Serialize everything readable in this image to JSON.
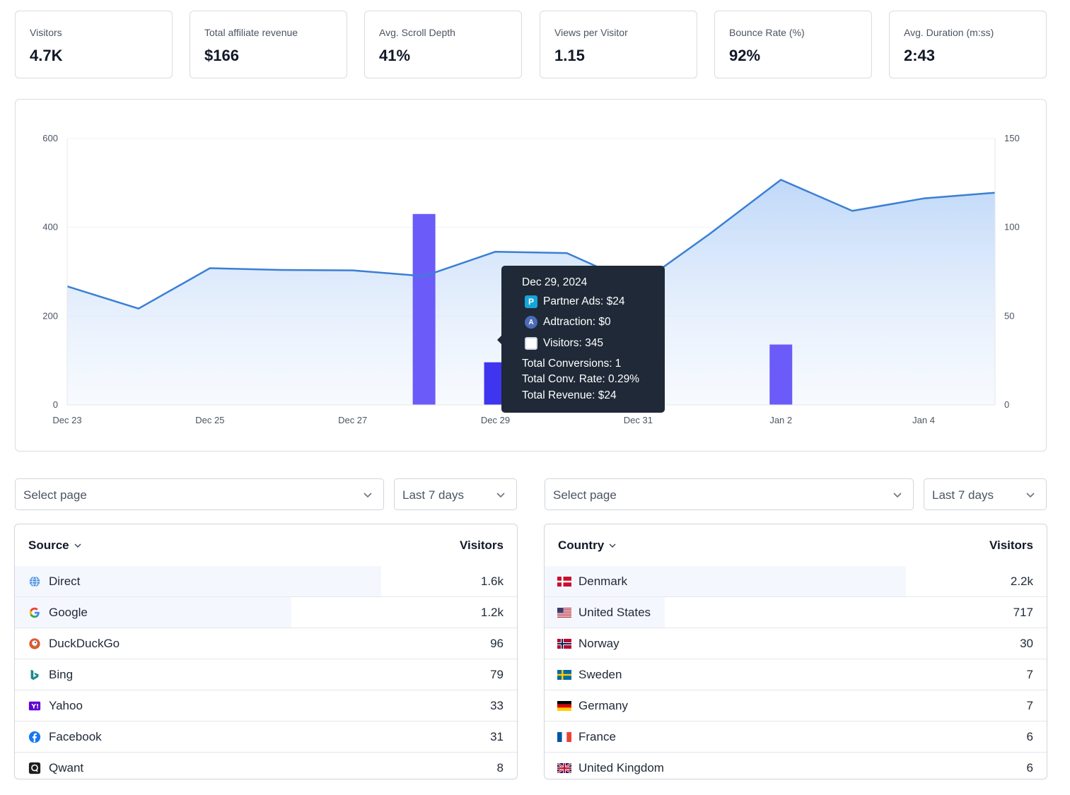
{
  "stats": [
    {
      "label": "Visitors",
      "value": "4.7K"
    },
    {
      "label": "Total affiliate revenue",
      "value": "$166"
    },
    {
      "label": "Avg. Scroll Depth",
      "value": "41%"
    },
    {
      "label": "Views per Visitor",
      "value": "1.15"
    },
    {
      "label": "Bounce Rate (%)",
      "value": "92%"
    },
    {
      "label": "Avg. Duration (m:ss)",
      "value": "2:43"
    }
  ],
  "chart_data": {
    "type": "line",
    "x": [
      "Dec 23",
      "Dec 24",
      "Dec 25",
      "Dec 26",
      "Dec 27",
      "Dec 28",
      "Dec 29",
      "Dec 30",
      "Dec 31",
      "Jan 1",
      "Jan 2",
      "Jan 3",
      "Jan 4",
      "Jan 5"
    ],
    "x_tick_labels": [
      "Dec 23",
      "Dec 25",
      "Dec 27",
      "Dec 29",
      "Dec 31",
      "Jan 2",
      "Jan 4"
    ],
    "left_axis": {
      "ylim": [
        0,
        600
      ],
      "ticks": [
        "600",
        "400",
        "200",
        "0"
      ]
    },
    "right_axis": {
      "ylim": [
        0,
        150
      ],
      "ticks": [
        "150",
        "100",
        "50",
        "0"
      ]
    },
    "series": [
      {
        "axis": "left",
        "kind": "area-line",
        "values": [
          267,
          217,
          308,
          304,
          303,
          290,
          345,
          342,
          270,
          385,
          507,
          437,
          465,
          478
        ],
        "color": "#3b7fd4"
      },
      {
        "axis": "right",
        "kind": "bar",
        "values": [
          0,
          0,
          0,
          0,
          0,
          107.5,
          24,
          0,
          0,
          0,
          34,
          0,
          0,
          0
        ],
        "colors": [
          "#6b5cf9",
          "#3f34ef"
        ]
      }
    ],
    "grid": true
  },
  "tooltip": {
    "date": "Dec 29, 2024",
    "items": [
      {
        "text": "Partner Ads: $24",
        "icon": "partner-ads-logo",
        "glyph": "P",
        "color": "#16a5d8"
      },
      {
        "text": "Adtraction: $0",
        "icon": "adtraction-logo",
        "glyph": "A",
        "color": "#4b6bb8"
      },
      {
        "text": "Visitors: 345",
        "icon": "visitors-swatch",
        "glyph": "",
        "color": "#ffffff"
      }
    ],
    "lines": [
      "Total Conversions: 1",
      "Total Conv. Rate: 0.29%",
      "Total Revenue: $24"
    ]
  },
  "filters": {
    "left": {
      "page_placeholder": "Select page",
      "range": "Last 7 days"
    },
    "right": {
      "page_placeholder": "Select page",
      "range": "Last 7 days"
    }
  },
  "sources": {
    "header": "Source",
    "value_header": "Visitors",
    "rows": [
      {
        "label": "Direct",
        "value": "1.6k",
        "icon": "globe-icon",
        "share": 0.73
      },
      {
        "label": "Google",
        "value": "1.2k",
        "icon": "google-icon",
        "share": 0.55
      },
      {
        "label": "DuckDuckGo",
        "value": "96",
        "icon": "duckduckgo-icon",
        "share": 0.0
      },
      {
        "label": "Bing",
        "value": "79",
        "icon": "bing-icon",
        "share": 0.0
      },
      {
        "label": "Yahoo",
        "value": "33",
        "icon": "yahoo-icon",
        "share": 0.0
      },
      {
        "label": "Facebook",
        "value": "31",
        "icon": "facebook-icon",
        "share": 0.0
      },
      {
        "label": "Qwant",
        "value": "8",
        "icon": "qwant-icon",
        "share": 0.0
      }
    ]
  },
  "countries": {
    "header": "Country",
    "value_header": "Visitors",
    "rows": [
      {
        "label": "Denmark",
        "value": "2.2k",
        "icon": "denmark-flag-icon",
        "share": 0.72
      },
      {
        "label": "United States",
        "value": "717",
        "icon": "us-flag-icon",
        "share": 0.24
      },
      {
        "label": "Norway",
        "value": "30",
        "icon": "norway-flag-icon",
        "share": 0.0
      },
      {
        "label": "Sweden",
        "value": "7",
        "icon": "sweden-flag-icon",
        "share": 0.0
      },
      {
        "label": "Germany",
        "value": "7",
        "icon": "germany-flag-icon",
        "share": 0.0
      },
      {
        "label": "France",
        "value": "6",
        "icon": "france-flag-icon",
        "share": 0.0
      },
      {
        "label": "United Kingdom",
        "value": "6",
        "icon": "uk-flag-icon",
        "share": 0.0
      }
    ]
  }
}
